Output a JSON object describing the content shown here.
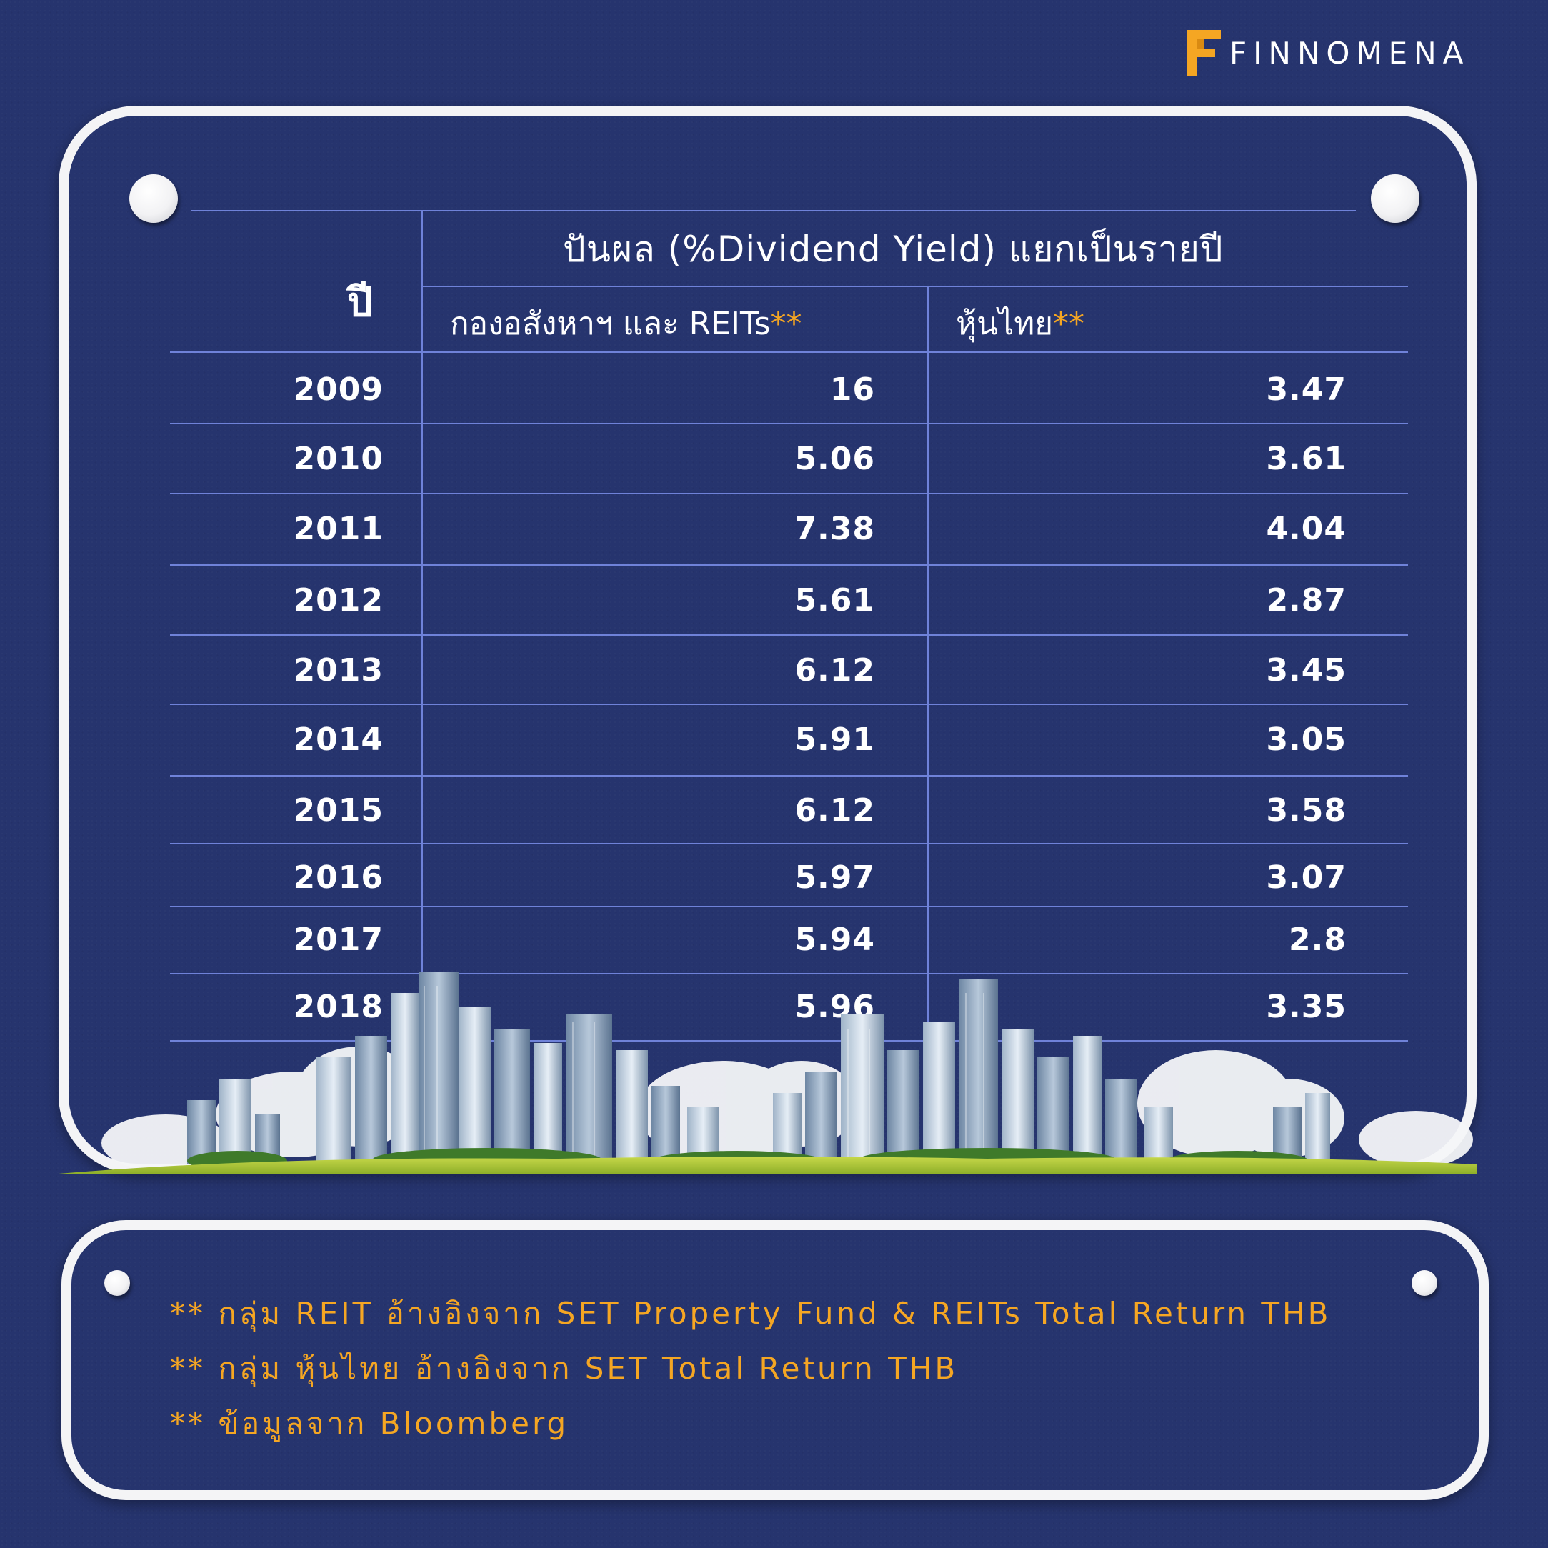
{
  "brand": {
    "name": "FINNOMENA",
    "logo_color": "#f5a623"
  },
  "table": {
    "title": "ปันผล (%Dividend Yield) แยกเป็นรายปี",
    "year_header": "ปี",
    "col1_header": "กองอสังหาฯ และ REITs",
    "col1_marker": "**",
    "col2_header": "หุ้นไทย",
    "col2_marker": "**",
    "rows": [
      {
        "year": "2009",
        "reit": "16",
        "thai": "3.47"
      },
      {
        "year": "2010",
        "reit": "5.06",
        "thai": "3.61"
      },
      {
        "year": "2011",
        "reit": "7.38",
        "thai": "4.04"
      },
      {
        "year": "2012",
        "reit": "5.61",
        "thai": "2.87"
      },
      {
        "year": "2013",
        "reit": "6.12",
        "thai": "3.45"
      },
      {
        "year": "2014",
        "reit": "5.91",
        "thai": "3.05"
      },
      {
        "year": "2015",
        "reit": "6.12",
        "thai": "3.58"
      },
      {
        "year": "2016",
        "reit": "5.97",
        "thai": "3.07"
      },
      {
        "year": "2017",
        "reit": "5.94",
        "thai": "2.8"
      },
      {
        "year": "2018",
        "reit": "5.96",
        "thai": "3.35"
      }
    ]
  },
  "chart_data": {
    "type": "table",
    "title": "ปันผล (%Dividend Yield) แยกเป็นรายปี",
    "columns": [
      "ปี",
      "กองอสังหาฯ และ REITs**",
      "หุ้นไทย**"
    ],
    "categories": [
      "2009",
      "2010",
      "2011",
      "2012",
      "2013",
      "2014",
      "2015",
      "2016",
      "2017",
      "2018"
    ],
    "series": [
      {
        "name": "กองอสังหาฯ และ REITs**",
        "values": [
          16,
          5.06,
          7.38,
          5.61,
          6.12,
          5.91,
          6.12,
          5.97,
          5.94,
          5.96
        ]
      },
      {
        "name": "หุ้นไทย**",
        "values": [
          3.47,
          3.61,
          4.04,
          2.87,
          3.45,
          3.05,
          3.58,
          3.07,
          2.8,
          3.35
        ]
      }
    ]
  },
  "notes": [
    "** กลุ่ม REIT อ้างอิงจาก SET Property Fund & REITs Total Return THB",
    "** กลุ่ม หุ้นไทย อ้างอิงจาก SET Total Return THB",
    "** ข้อมูลจาก Bloomberg"
  ],
  "colors": {
    "background": "#26346e",
    "accent": "#f5a623",
    "grid_line": "#6f82d9",
    "card_border": "#f4f4f6"
  }
}
